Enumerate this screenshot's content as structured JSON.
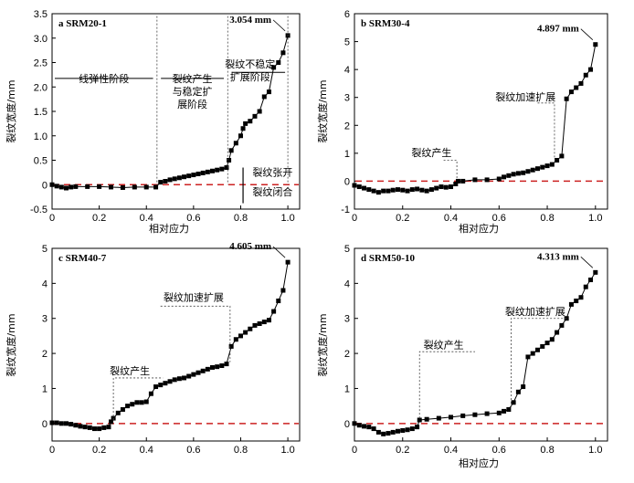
{
  "chart_data": [
    {
      "type": "line",
      "title": "a SRM20-1",
      "xlabel": "相对应力",
      "ylabel": "裂纹宽度/mm",
      "xlim": [
        0,
        1.05
      ],
      "ylim": [
        -0.5,
        3.5
      ],
      "xticks": [
        "0",
        "0.2",
        "0.4",
        "0.6",
        "0.8",
        "1.0"
      ],
      "xtick_values": [
        0,
        0.2,
        0.4,
        0.6,
        0.8,
        1.0
      ],
      "yticks": [
        "-0.5",
        "0",
        "0.5",
        "1.0",
        "1.5",
        "2.0",
        "2.5",
        "3.0",
        "3.5"
      ],
      "ytick_values": [
        -0.5,
        0,
        0.5,
        1.0,
        1.5,
        2.0,
        2.5,
        3.0,
        3.5
      ],
      "end_value_label": "3.054 mm",
      "color": "#000000",
      "reference_line_color": "#cc2222",
      "x": [
        0.0,
        0.02,
        0.04,
        0.06,
        0.08,
        0.1,
        0.15,
        0.2,
        0.25,
        0.3,
        0.35,
        0.4,
        0.44,
        0.46,
        0.48,
        0.5,
        0.52,
        0.54,
        0.56,
        0.58,
        0.6,
        0.62,
        0.64,
        0.66,
        0.68,
        0.7,
        0.72,
        0.74,
        0.75,
        0.76,
        0.78,
        0.8,
        0.81,
        0.82,
        0.84,
        0.86,
        0.88,
        0.9,
        0.92,
        0.94,
        0.96,
        0.98,
        1.0
      ],
      "y": [
        0.0,
        -0.03,
        -0.05,
        -0.07,
        -0.05,
        -0.04,
        -0.04,
        -0.04,
        -0.05,
        -0.06,
        -0.05,
        -0.05,
        -0.05,
        0.05,
        0.07,
        0.1,
        0.12,
        0.14,
        0.16,
        0.18,
        0.2,
        0.22,
        0.24,
        0.26,
        0.28,
        0.3,
        0.32,
        0.35,
        0.5,
        0.7,
        0.85,
        1.0,
        1.15,
        1.25,
        1.3,
        1.4,
        1.5,
        1.8,
        1.9,
        2.4,
        2.5,
        2.7,
        3.054
      ],
      "annotations": [
        {
          "text": "线弹性阶段",
          "lines": [
            "线弹性阶段"
          ]
        },
        {
          "text": "裂纹产生与稳定扩展阶段",
          "lines": [
            "裂纹产生",
            "与稳定扩",
            "展阶段"
          ]
        },
        {
          "text": "裂纹不稳定扩展阶段",
          "lines": [
            "裂纹不稳定",
            "扩展阶段"
          ]
        },
        {
          "text": "裂纹张开",
          "lines": [
            "裂纹张开"
          ]
        },
        {
          "text": "裂纹闭合",
          "lines": [
            "裂纹闭合"
          ]
        }
      ]
    },
    {
      "type": "line",
      "title": "b SRM30-4",
      "xlabel": "相对应力",
      "ylabel": "裂纹宽度/mm",
      "xlim": [
        0,
        1.05
      ],
      "ylim": [
        -1,
        6
      ],
      "xticks": [
        "0",
        "0.2",
        "0.4",
        "0.6",
        "0.8",
        "1.0"
      ],
      "xtick_values": [
        0,
        0.2,
        0.4,
        0.6,
        0.8,
        1.0
      ],
      "yticks": [
        "-1",
        "0",
        "1",
        "2",
        "3",
        "4",
        "5",
        "6"
      ],
      "ytick_values": [
        -1,
        0,
        1,
        2,
        3,
        4,
        5,
        6
      ],
      "end_value_label": "4.897 mm",
      "color": "#000000",
      "reference_line_color": "#cc2222",
      "x": [
        0.0,
        0.02,
        0.04,
        0.06,
        0.08,
        0.1,
        0.12,
        0.14,
        0.16,
        0.18,
        0.2,
        0.22,
        0.24,
        0.26,
        0.28,
        0.3,
        0.32,
        0.34,
        0.36,
        0.38,
        0.4,
        0.42,
        0.43,
        0.45,
        0.5,
        0.55,
        0.6,
        0.62,
        0.64,
        0.66,
        0.68,
        0.7,
        0.72,
        0.74,
        0.76,
        0.78,
        0.8,
        0.82,
        0.84,
        0.86,
        0.88,
        0.9,
        0.92,
        0.94,
        0.96,
        0.98,
        1.0
      ],
      "y": [
        -0.15,
        -0.2,
        -0.25,
        -0.3,
        -0.35,
        -0.4,
        -0.35,
        -0.35,
        -0.32,
        -0.3,
        -0.32,
        -0.35,
        -0.3,
        -0.28,
        -0.32,
        -0.35,
        -0.3,
        -0.25,
        -0.2,
        -0.22,
        -0.2,
        -0.1,
        0.0,
        0.0,
        0.05,
        0.05,
        0.08,
        0.15,
        0.2,
        0.25,
        0.28,
        0.3,
        0.35,
        0.4,
        0.45,
        0.5,
        0.55,
        0.6,
        0.75,
        0.9,
        2.95,
        3.2,
        3.35,
        3.5,
        3.8,
        4.0,
        4.897
      ],
      "annotations": [
        {
          "text": "裂纹产生",
          "lines": [
            "裂纹产生"
          ]
        },
        {
          "text": "裂纹加速扩展",
          "lines": [
            "裂纹加速扩展"
          ]
        }
      ]
    },
    {
      "type": "line",
      "title": "c SRM40-7",
      "xlabel": "",
      "ylabel": "裂纹宽度/mm",
      "xlim": [
        0,
        1.05
      ],
      "ylim": [
        -0.5,
        5
      ],
      "xticks": [
        "0",
        "0.2",
        "0.4",
        "0.6",
        "0.8",
        "1.0"
      ],
      "xtick_values": [
        0,
        0.2,
        0.4,
        0.6,
        0.8,
        1.0
      ],
      "yticks": [
        "0",
        "1",
        "2",
        "3",
        "4",
        "5"
      ],
      "ytick_values": [
        0,
        1,
        2,
        3,
        4,
        5
      ],
      "end_value_label": "4.605 mm",
      "color": "#000000",
      "reference_line_color": "#cc2222",
      "x": [
        0.0,
        0.02,
        0.04,
        0.06,
        0.08,
        0.1,
        0.12,
        0.14,
        0.16,
        0.18,
        0.2,
        0.22,
        0.24,
        0.25,
        0.26,
        0.28,
        0.3,
        0.32,
        0.34,
        0.36,
        0.38,
        0.4,
        0.42,
        0.44,
        0.46,
        0.48,
        0.5,
        0.52,
        0.54,
        0.56,
        0.58,
        0.6,
        0.62,
        0.64,
        0.66,
        0.68,
        0.7,
        0.72,
        0.74,
        0.76,
        0.78,
        0.8,
        0.82,
        0.84,
        0.86,
        0.88,
        0.9,
        0.92,
        0.94,
        0.96,
        0.98,
        1.0
      ],
      "y": [
        0.02,
        0.02,
        0.0,
        0.0,
        -0.02,
        -0.05,
        -0.08,
        -0.1,
        -0.12,
        -0.15,
        -0.15,
        -0.12,
        -0.1,
        0.05,
        0.15,
        0.3,
        0.4,
        0.5,
        0.55,
        0.6,
        0.6,
        0.62,
        0.85,
        1.05,
        1.1,
        1.15,
        1.2,
        1.25,
        1.28,
        1.3,
        1.35,
        1.4,
        1.45,
        1.5,
        1.55,
        1.6,
        1.62,
        1.65,
        1.7,
        2.2,
        2.4,
        2.5,
        2.6,
        2.7,
        2.8,
        2.85,
        2.9,
        2.95,
        3.2,
        3.5,
        3.8,
        4.605
      ],
      "annotations": [
        {
          "text": "裂纹产生",
          "lines": [
            "裂纹产生"
          ]
        },
        {
          "text": "裂纹加速扩展",
          "lines": [
            "裂纹加速扩展"
          ]
        }
      ]
    },
    {
      "type": "line",
      "title": "d SRM50-10",
      "xlabel": "相对应力",
      "ylabel": "裂纹宽度/mm",
      "xlim": [
        0,
        1.05
      ],
      "ylim": [
        -0.5,
        5
      ],
      "xticks": [
        "0",
        "0.2",
        "0.4",
        "0.6",
        "0.8",
        "1.0"
      ],
      "xtick_values": [
        0,
        0.2,
        0.4,
        0.6,
        0.8,
        1.0
      ],
      "yticks": [
        "0",
        "1",
        "2",
        "3",
        "4",
        "5"
      ],
      "ytick_values": [
        0,
        1,
        2,
        3,
        4,
        5
      ],
      "end_value_label": "4.313 mm",
      "color": "#000000",
      "reference_line_color": "#cc2222",
      "x": [
        0.0,
        0.02,
        0.04,
        0.06,
        0.08,
        0.1,
        0.12,
        0.14,
        0.16,
        0.18,
        0.2,
        0.22,
        0.24,
        0.26,
        0.27,
        0.3,
        0.35,
        0.4,
        0.45,
        0.5,
        0.55,
        0.6,
        0.62,
        0.64,
        0.66,
        0.68,
        0.7,
        0.72,
        0.74,
        0.76,
        0.78,
        0.8,
        0.82,
        0.84,
        0.86,
        0.88,
        0.9,
        0.92,
        0.94,
        0.96,
        0.98,
        1.0
      ],
      "y": [
        0.0,
        -0.05,
        -0.08,
        -0.1,
        -0.15,
        -0.25,
        -0.3,
        -0.28,
        -0.25,
        -0.22,
        -0.2,
        -0.18,
        -0.15,
        -0.1,
        0.1,
        0.12,
        0.15,
        0.18,
        0.22,
        0.25,
        0.28,
        0.3,
        0.35,
        0.4,
        0.6,
        0.9,
        1.05,
        1.9,
        2.0,
        2.1,
        2.2,
        2.3,
        2.4,
        2.6,
        2.8,
        3.0,
        3.4,
        3.5,
        3.6,
        3.9,
        4.1,
        4.313
      ],
      "annotations": [
        {
          "text": "裂纹产生",
          "lines": [
            "裂纹产生"
          ]
        },
        {
          "text": "裂纹加速扩展",
          "lines": [
            "裂纹加速扩展"
          ]
        }
      ]
    }
  ]
}
